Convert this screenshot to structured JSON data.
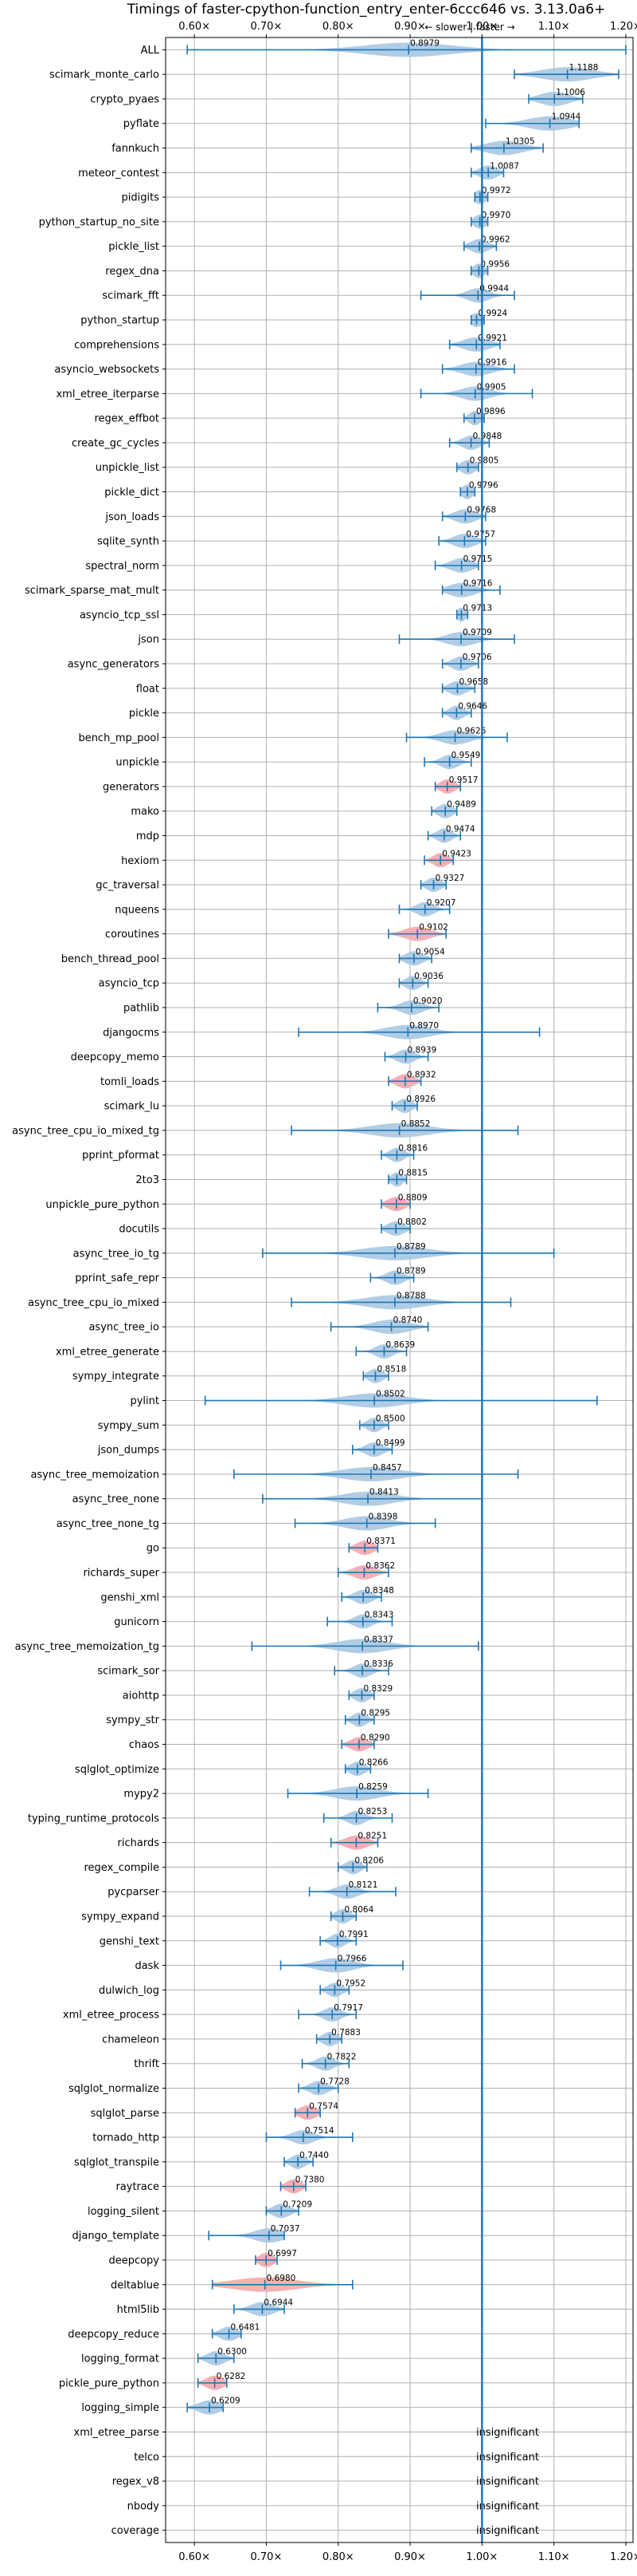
{
  "chart_data": {
    "type": "violin",
    "title": "Timings of faster-cpython-function_entry_enter-6ccc646 vs. 3.13.0a6+",
    "direction_label": "← slower | faster →",
    "xlim": [
      0.56,
      1.21
    ],
    "x_ticks": [
      0.6,
      0.7,
      0.8,
      0.9,
      1.0,
      1.1,
      1.2
    ],
    "x_tick_labels": [
      "0.60×",
      "0.70×",
      "0.80×",
      "0.90×",
      "1.00×",
      "1.10×",
      "1.20×"
    ],
    "reference_line": 1.0,
    "grid": true,
    "colors": {
      "faster": "#a9c8e2",
      "slower": "#f4a7ad",
      "whisker": "#1f77b4",
      "reference": "#1f77b4"
    },
    "insignificant_label": "insignificant",
    "benchmarks": [
      {
        "name": "ALL",
        "mean": 0.8979,
        "label": "0.8979",
        "lo": 0.59,
        "hi": 1.2,
        "spread": 0.06,
        "color": "blue"
      },
      {
        "name": "scimark_monte_carlo",
        "mean": 1.1188,
        "label": "1.1188",
        "lo": 1.045,
        "hi": 1.19,
        "spread": 0.035,
        "color": "blue"
      },
      {
        "name": "crypto_pyaes",
        "mean": 1.1006,
        "label": "1.1006",
        "lo": 1.065,
        "hi": 1.14,
        "spread": 0.02,
        "color": "blue"
      },
      {
        "name": "pyflate",
        "mean": 1.0944,
        "label": "1.0944",
        "lo": 1.005,
        "hi": 1.135,
        "spread": 0.03,
        "color": "blue"
      },
      {
        "name": "fannkuch",
        "mean": 1.0305,
        "label": "1.0305",
        "lo": 0.985,
        "hi": 1.085,
        "spread": 0.025,
        "color": "blue"
      },
      {
        "name": "meteor_contest",
        "mean": 1.0087,
        "label": "1.0087",
        "lo": 0.985,
        "hi": 1.03,
        "spread": 0.012,
        "color": "blue"
      },
      {
        "name": "pidigits",
        "mean": 0.9972,
        "label": "0.9972",
        "lo": 0.99,
        "hi": 1.008,
        "spread": 0.008,
        "color": "blue"
      },
      {
        "name": "python_startup_no_site",
        "mean": 0.997,
        "label": "0.9970",
        "lo": 0.985,
        "hi": 1.008,
        "spread": 0.008,
        "color": "blue"
      },
      {
        "name": "pickle_list",
        "mean": 0.9962,
        "label": "0.9962",
        "lo": 0.975,
        "hi": 1.02,
        "spread": 0.012,
        "color": "blue"
      },
      {
        "name": "regex_dna",
        "mean": 0.9956,
        "label": "0.9956",
        "lo": 0.985,
        "hi": 1.008,
        "spread": 0.008,
        "color": "blue"
      },
      {
        "name": "scimark_fft",
        "mean": 0.9944,
        "label": "0.9944",
        "lo": 0.915,
        "hi": 1.045,
        "spread": 0.015,
        "color": "blue"
      },
      {
        "name": "python_startup",
        "mean": 0.9924,
        "label": "0.9924",
        "lo": 0.985,
        "hi": 1.003,
        "spread": 0.008,
        "color": "blue"
      },
      {
        "name": "comprehensions",
        "mean": 0.9921,
        "label": "0.9921",
        "lo": 0.955,
        "hi": 1.025,
        "spread": 0.018,
        "color": "blue"
      },
      {
        "name": "asyncio_websockets",
        "mean": 0.9916,
        "label": "0.9916",
        "lo": 0.945,
        "hi": 1.045,
        "spread": 0.02,
        "color": "blue"
      },
      {
        "name": "xml_etree_iterparse",
        "mean": 0.9905,
        "label": "0.9905",
        "lo": 0.915,
        "hi": 1.07,
        "spread": 0.02,
        "color": "blue"
      },
      {
        "name": "regex_effbot",
        "mean": 0.9896,
        "label": "0.9896",
        "lo": 0.975,
        "hi": 1.003,
        "spread": 0.008,
        "color": "blue"
      },
      {
        "name": "create_gc_cycles",
        "mean": 0.9848,
        "label": "0.9848",
        "lo": 0.955,
        "hi": 1.01,
        "spread": 0.012,
        "color": "blue"
      },
      {
        "name": "unpickle_list",
        "mean": 0.9805,
        "label": "0.9805",
        "lo": 0.965,
        "hi": 0.995,
        "spread": 0.01,
        "color": "blue"
      },
      {
        "name": "pickle_dict",
        "mean": 0.9796,
        "label": "0.9796",
        "lo": 0.97,
        "hi": 0.99,
        "spread": 0.008,
        "color": "blue"
      },
      {
        "name": "json_loads",
        "mean": 0.9768,
        "label": "0.9768",
        "lo": 0.945,
        "hi": 1.005,
        "spread": 0.015,
        "color": "blue"
      },
      {
        "name": "sqlite_synth",
        "mean": 0.9757,
        "label": "0.9757",
        "lo": 0.94,
        "hi": 1.005,
        "spread": 0.015,
        "color": "blue"
      },
      {
        "name": "spectral_norm",
        "mean": 0.9715,
        "label": "0.9715",
        "lo": 0.935,
        "hi": 0.995,
        "spread": 0.015,
        "color": "blue"
      },
      {
        "name": "scimark_sparse_mat_mult",
        "mean": 0.9716,
        "label": "0.9716",
        "lo": 0.945,
        "hi": 1.025,
        "spread": 0.018,
        "color": "blue"
      },
      {
        "name": "asyncio_tcp_ssl",
        "mean": 0.9713,
        "label": "0.9713",
        "lo": 0.965,
        "hi": 0.98,
        "spread": 0.006,
        "color": "blue"
      },
      {
        "name": "json",
        "mean": 0.9709,
        "label": "0.9709",
        "lo": 0.885,
        "hi": 1.045,
        "spread": 0.02,
        "color": "blue"
      },
      {
        "name": "async_generators",
        "mean": 0.9706,
        "label": "0.9706",
        "lo": 0.945,
        "hi": 0.995,
        "spread": 0.012,
        "color": "blue"
      },
      {
        "name": "float",
        "mean": 0.9658,
        "label": "0.9658",
        "lo": 0.945,
        "hi": 0.99,
        "spread": 0.012,
        "color": "blue"
      },
      {
        "name": "pickle",
        "mean": 0.9646,
        "label": "0.9646",
        "lo": 0.945,
        "hi": 0.985,
        "spread": 0.01,
        "color": "blue"
      },
      {
        "name": "bench_mp_pool",
        "mean": 0.9626,
        "label": "0.9626",
        "lo": 0.895,
        "hi": 1.035,
        "spread": 0.02,
        "color": "blue"
      },
      {
        "name": "unpickle",
        "mean": 0.9549,
        "label": "0.9549",
        "lo": 0.92,
        "hi": 0.985,
        "spread": 0.012,
        "color": "blue"
      },
      {
        "name": "generators",
        "mean": 0.9517,
        "label": "0.9517",
        "lo": 0.935,
        "hi": 0.97,
        "spread": 0.01,
        "color": "red"
      },
      {
        "name": "mako",
        "mean": 0.9489,
        "label": "0.9489",
        "lo": 0.93,
        "hi": 0.965,
        "spread": 0.01,
        "color": "blue"
      },
      {
        "name": "mdp",
        "mean": 0.9474,
        "label": "0.9474",
        "lo": 0.925,
        "hi": 0.97,
        "spread": 0.01,
        "color": "blue"
      },
      {
        "name": "hexiom",
        "mean": 0.9423,
        "label": "0.9423",
        "lo": 0.92,
        "hi": 0.96,
        "spread": 0.01,
        "color": "red"
      },
      {
        "name": "gc_traversal",
        "mean": 0.9327,
        "label": "0.9327",
        "lo": 0.915,
        "hi": 0.95,
        "spread": 0.01,
        "color": "blue"
      },
      {
        "name": "nqueens",
        "mean": 0.9207,
        "label": "0.9207",
        "lo": 0.885,
        "hi": 0.955,
        "spread": 0.012,
        "color": "blue"
      },
      {
        "name": "coroutines",
        "mean": 0.9102,
        "label": "0.9102",
        "lo": 0.87,
        "hi": 0.95,
        "spread": 0.018,
        "color": "red"
      },
      {
        "name": "bench_thread_pool",
        "mean": 0.9054,
        "label": "0.9054",
        "lo": 0.885,
        "hi": 0.93,
        "spread": 0.012,
        "color": "blue"
      },
      {
        "name": "asyncio_tcp",
        "mean": 0.9036,
        "label": "0.9036",
        "lo": 0.885,
        "hi": 0.925,
        "spread": 0.01,
        "color": "blue"
      },
      {
        "name": "pathlib",
        "mean": 0.902,
        "label": "0.9020",
        "lo": 0.855,
        "hi": 0.94,
        "spread": 0.015,
        "color": "blue"
      },
      {
        "name": "djangocms",
        "mean": 0.897,
        "label": "0.8970",
        "lo": 0.745,
        "hi": 1.08,
        "spread": 0.03,
        "color": "blue"
      },
      {
        "name": "deepcopy_memo",
        "mean": 0.8939,
        "label": "0.8939",
        "lo": 0.865,
        "hi": 0.925,
        "spread": 0.012,
        "color": "blue"
      },
      {
        "name": "tomli_loads",
        "mean": 0.8932,
        "label": "0.8932",
        "lo": 0.87,
        "hi": 0.915,
        "spread": 0.012,
        "color": "red"
      },
      {
        "name": "scimark_lu",
        "mean": 0.8926,
        "label": "0.8926",
        "lo": 0.875,
        "hi": 0.91,
        "spread": 0.01,
        "color": "blue"
      },
      {
        "name": "async_tree_cpu_io_mixed_tg",
        "mean": 0.8852,
        "label": "0.8852",
        "lo": 0.735,
        "hi": 1.05,
        "spread": 0.04,
        "color": "blue"
      },
      {
        "name": "pprint_pformat",
        "mean": 0.8816,
        "label": "0.8816",
        "lo": 0.86,
        "hi": 0.905,
        "spread": 0.01,
        "color": "blue"
      },
      {
        "name": "2to3",
        "mean": 0.8815,
        "label": "0.8815",
        "lo": 0.87,
        "hi": 0.895,
        "spread": 0.008,
        "color": "blue"
      },
      {
        "name": "unpickle_pure_python",
        "mean": 0.8809,
        "label": "0.8809",
        "lo": 0.86,
        "hi": 0.9,
        "spread": 0.012,
        "color": "red"
      },
      {
        "name": "docutils",
        "mean": 0.8802,
        "label": "0.8802",
        "lo": 0.86,
        "hi": 0.9,
        "spread": 0.012,
        "color": "blue"
      },
      {
        "name": "async_tree_io_tg",
        "mean": 0.8789,
        "label": "0.8789",
        "lo": 0.695,
        "hi": 1.1,
        "spread": 0.045,
        "color": "blue"
      },
      {
        "name": "pprint_safe_repr",
        "mean": 0.8789,
        "label": "0.8789",
        "lo": 0.845,
        "hi": 0.905,
        "spread": 0.012,
        "color": "blue"
      },
      {
        "name": "async_tree_cpu_io_mixed",
        "mean": 0.8788,
        "label": "0.8788",
        "lo": 0.735,
        "hi": 1.04,
        "spread": 0.04,
        "color": "blue"
      },
      {
        "name": "async_tree_io",
        "mean": 0.874,
        "label": "0.8740",
        "lo": 0.79,
        "hi": 0.925,
        "spread": 0.025,
        "color": "blue"
      },
      {
        "name": "xml_etree_generate",
        "mean": 0.8639,
        "label": "0.8639",
        "lo": 0.825,
        "hi": 0.895,
        "spread": 0.012,
        "color": "blue"
      },
      {
        "name": "sympy_integrate",
        "mean": 0.8518,
        "label": "0.8518",
        "lo": 0.835,
        "hi": 0.87,
        "spread": 0.01,
        "color": "blue"
      },
      {
        "name": "pylint",
        "mean": 0.8502,
        "label": "0.8502",
        "lo": 0.615,
        "hi": 1.16,
        "spread": 0.04,
        "color": "blue"
      },
      {
        "name": "sympy_sum",
        "mean": 0.85,
        "label": "0.8500",
        "lo": 0.83,
        "hi": 0.87,
        "spread": 0.01,
        "color": "blue"
      },
      {
        "name": "json_dumps",
        "mean": 0.8499,
        "label": "0.8499",
        "lo": 0.82,
        "hi": 0.875,
        "spread": 0.012,
        "color": "blue"
      },
      {
        "name": "async_tree_memoization",
        "mean": 0.8457,
        "label": "0.8457",
        "lo": 0.655,
        "hi": 1.05,
        "spread": 0.04,
        "color": "blue"
      },
      {
        "name": "async_tree_none",
        "mean": 0.8413,
        "label": "0.8413",
        "lo": 0.695,
        "hi": 1.0,
        "spread": 0.035,
        "color": "blue"
      },
      {
        "name": "async_tree_none_tg",
        "mean": 0.8398,
        "label": "0.8398",
        "lo": 0.74,
        "hi": 0.935,
        "spread": 0.03,
        "color": "blue"
      },
      {
        "name": "go",
        "mean": 0.8371,
        "label": "0.8371",
        "lo": 0.815,
        "hi": 0.855,
        "spread": 0.012,
        "color": "red"
      },
      {
        "name": "richards_super",
        "mean": 0.8362,
        "label": "0.8362",
        "lo": 0.8,
        "hi": 0.87,
        "spread": 0.015,
        "color": "red"
      },
      {
        "name": "genshi_xml",
        "mean": 0.8348,
        "label": "0.8348",
        "lo": 0.805,
        "hi": 0.86,
        "spread": 0.012,
        "color": "blue"
      },
      {
        "name": "gunicorn",
        "mean": 0.8343,
        "label": "0.8343",
        "lo": 0.785,
        "hi": 0.875,
        "spread": 0.012,
        "color": "blue"
      },
      {
        "name": "async_tree_memoization_tg",
        "mean": 0.8337,
        "label": "0.8337",
        "lo": 0.68,
        "hi": 0.995,
        "spread": 0.035,
        "color": "blue"
      },
      {
        "name": "scimark_sor",
        "mean": 0.8336,
        "label": "0.8336",
        "lo": 0.795,
        "hi": 0.87,
        "spread": 0.012,
        "color": "blue"
      },
      {
        "name": "aiohttp",
        "mean": 0.8329,
        "label": "0.8329",
        "lo": 0.815,
        "hi": 0.85,
        "spread": 0.01,
        "color": "blue"
      },
      {
        "name": "sympy_str",
        "mean": 0.8295,
        "label": "0.8295",
        "lo": 0.81,
        "hi": 0.85,
        "spread": 0.01,
        "color": "blue"
      },
      {
        "name": "chaos",
        "mean": 0.829,
        "label": "0.8290",
        "lo": 0.805,
        "hi": 0.85,
        "spread": 0.012,
        "color": "red"
      },
      {
        "name": "sqlglot_optimize",
        "mean": 0.8266,
        "label": "0.8266",
        "lo": 0.81,
        "hi": 0.845,
        "spread": 0.01,
        "color": "blue"
      },
      {
        "name": "mypy2",
        "mean": 0.8259,
        "label": "0.8259",
        "lo": 0.73,
        "hi": 0.925,
        "spread": 0.03,
        "color": "blue"
      },
      {
        "name": "typing_runtime_protocols",
        "mean": 0.8253,
        "label": "0.8253",
        "lo": 0.78,
        "hi": 0.875,
        "spread": 0.012,
        "color": "blue"
      },
      {
        "name": "richards",
        "mean": 0.8251,
        "label": "0.8251",
        "lo": 0.79,
        "hi": 0.855,
        "spread": 0.015,
        "color": "red"
      },
      {
        "name": "regex_compile",
        "mean": 0.8206,
        "label": "0.8206",
        "lo": 0.8,
        "hi": 0.84,
        "spread": 0.01,
        "color": "blue"
      },
      {
        "name": "pycparser",
        "mean": 0.8121,
        "label": "0.8121",
        "lo": 0.76,
        "hi": 0.88,
        "spread": 0.015,
        "color": "blue"
      },
      {
        "name": "sympy_expand",
        "mean": 0.8064,
        "label": "0.8064",
        "lo": 0.79,
        "hi": 0.825,
        "spread": 0.01,
        "color": "blue"
      },
      {
        "name": "genshi_text",
        "mean": 0.7991,
        "label": "0.7991",
        "lo": 0.775,
        "hi": 0.825,
        "spread": 0.01,
        "color": "blue"
      },
      {
        "name": "dask",
        "mean": 0.7966,
        "label": "0.7966",
        "lo": 0.72,
        "hi": 0.89,
        "spread": 0.025,
        "color": "blue"
      },
      {
        "name": "dulwich_log",
        "mean": 0.7952,
        "label": "0.7952",
        "lo": 0.775,
        "hi": 0.815,
        "spread": 0.01,
        "color": "blue"
      },
      {
        "name": "xml_etree_process",
        "mean": 0.7917,
        "label": "0.7917",
        "lo": 0.745,
        "hi": 0.825,
        "spread": 0.012,
        "color": "blue"
      },
      {
        "name": "chameleon",
        "mean": 0.7883,
        "label": "0.7883",
        "lo": 0.77,
        "hi": 0.805,
        "spread": 0.01,
        "color": "blue"
      },
      {
        "name": "thrift",
        "mean": 0.7822,
        "label": "0.7822",
        "lo": 0.75,
        "hi": 0.815,
        "spread": 0.012,
        "color": "blue"
      },
      {
        "name": "sqlglot_normalize",
        "mean": 0.7728,
        "label": "0.7728",
        "lo": 0.745,
        "hi": 0.8,
        "spread": 0.012,
        "color": "blue"
      },
      {
        "name": "sqlglot_parse",
        "mean": 0.7574,
        "label": "0.7574",
        "lo": 0.74,
        "hi": 0.775,
        "spread": 0.012,
        "color": "red"
      },
      {
        "name": "tornado_http",
        "mean": 0.7514,
        "label": "0.7514",
        "lo": 0.7,
        "hi": 0.82,
        "spread": 0.015,
        "color": "blue"
      },
      {
        "name": "sqlglot_transpile",
        "mean": 0.744,
        "label": "0.7440",
        "lo": 0.725,
        "hi": 0.765,
        "spread": 0.01,
        "color": "blue"
      },
      {
        "name": "raytrace",
        "mean": 0.738,
        "label": "0.7380",
        "lo": 0.72,
        "hi": 0.755,
        "spread": 0.01,
        "color": "red"
      },
      {
        "name": "logging_silent",
        "mean": 0.7209,
        "label": "0.7209",
        "lo": 0.7,
        "hi": 0.745,
        "spread": 0.012,
        "color": "blue"
      },
      {
        "name": "django_template",
        "mean": 0.7037,
        "label": "0.7037",
        "lo": 0.62,
        "hi": 0.725,
        "spread": 0.02,
        "color": "blue"
      },
      {
        "name": "deepcopy",
        "mean": 0.6997,
        "label": "0.6997",
        "lo": 0.685,
        "hi": 0.715,
        "spread": 0.01,
        "color": "red"
      },
      {
        "name": "deltablue",
        "mean": 0.698,
        "label": "0.6980",
        "lo": 0.625,
        "hi": 0.82,
        "spread": 0.045,
        "color": "red"
      },
      {
        "name": "html5lib",
        "mean": 0.6944,
        "label": "0.6944",
        "lo": 0.655,
        "hi": 0.725,
        "spread": 0.015,
        "color": "blue"
      },
      {
        "name": "deepcopy_reduce",
        "mean": 0.6481,
        "label": "0.6481",
        "lo": 0.625,
        "hi": 0.665,
        "spread": 0.012,
        "color": "blue"
      },
      {
        "name": "logging_format",
        "mean": 0.63,
        "label": "0.6300",
        "lo": 0.605,
        "hi": 0.655,
        "spread": 0.012,
        "color": "blue"
      },
      {
        "name": "pickle_pure_python",
        "mean": 0.6282,
        "label": "0.6282",
        "lo": 0.605,
        "hi": 0.645,
        "spread": 0.012,
        "color": "red"
      },
      {
        "name": "logging_simple",
        "mean": 0.6209,
        "label": "0.6209",
        "lo": 0.59,
        "hi": 0.64,
        "spread": 0.015,
        "color": "blue"
      },
      {
        "name": "xml_etree_parse",
        "insignificant": true
      },
      {
        "name": "telco",
        "insignificant": true
      },
      {
        "name": "regex_v8",
        "insignificant": true
      },
      {
        "name": "nbody",
        "insignificant": true
      },
      {
        "name": "coverage",
        "insignificant": true
      }
    ]
  }
}
